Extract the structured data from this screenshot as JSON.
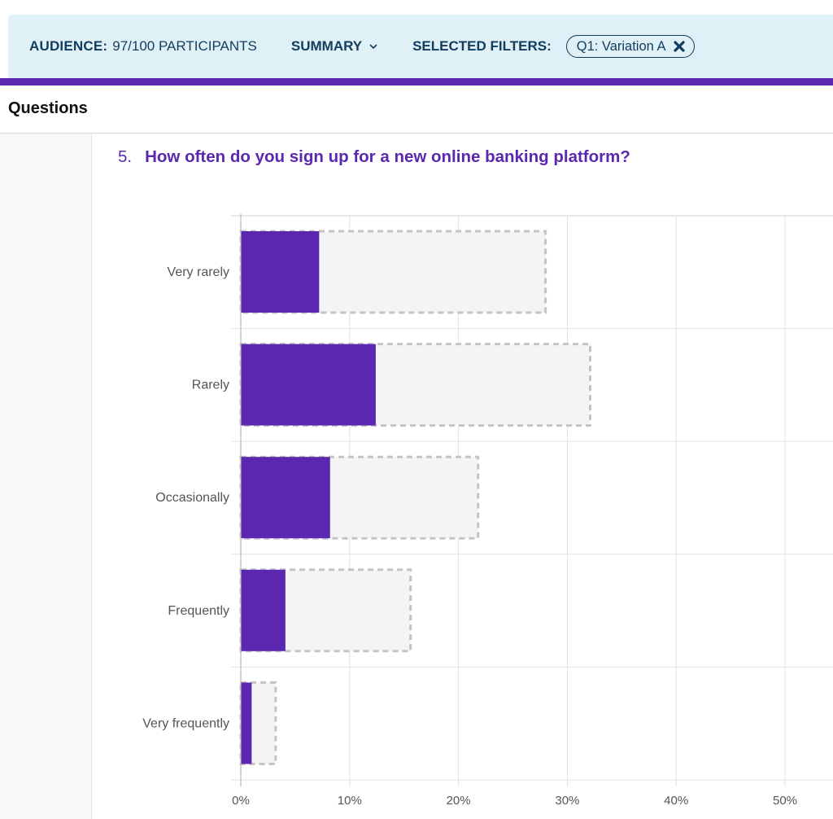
{
  "header": {
    "audience_label": "AUDIENCE:",
    "audience_value": "97/100 PARTICIPANTS",
    "summary_label": "SUMMARY",
    "filters_label": "SELECTED FILTERS:",
    "filter_chip": "Q1: Variation A"
  },
  "section": {
    "title": "Questions"
  },
  "question": {
    "number": "5.",
    "text": "How often do you sign up for a new online banking platform?"
  },
  "colors": {
    "accent": "#5b27b0",
    "header_bg": "#dff0f6",
    "header_text": "#123c5e",
    "comparison_fill": "#f4f4f4",
    "comparison_border": "#c4c4c4"
  },
  "chart_data": {
    "type": "bar",
    "orientation": "horizontal",
    "categories": [
      "Very rarely",
      "Rarely",
      "Occasionally",
      "Frequently",
      "Very frequently"
    ],
    "series": [
      {
        "values": [
          7.2,
          12.4,
          8.2,
          4.1,
          1.0
        ]
      },
      {
        "values": [
          28.0,
          32.1,
          21.8,
          15.6,
          3.2
        ]
      }
    ],
    "xlim": [
      0,
      55
    ],
    "x_ticks": [
      "0%",
      "10%",
      "20%",
      "30%",
      "40%",
      "50%"
    ],
    "x_tick_values": [
      0,
      10,
      20,
      30,
      40,
      50
    ],
    "grid": true
  }
}
